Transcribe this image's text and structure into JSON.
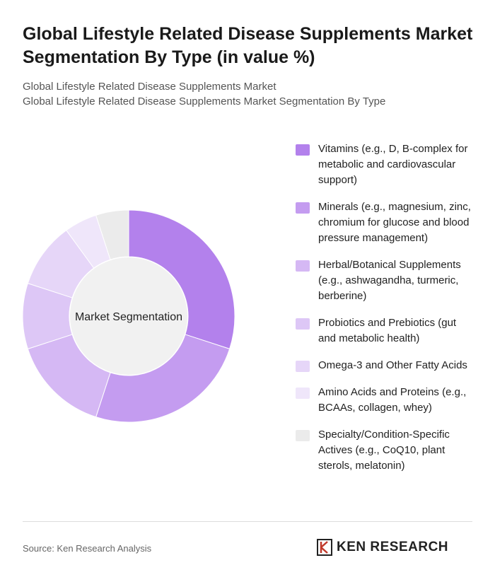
{
  "title": "Global Lifestyle Related Disease Supplements Market Segmentation By Type (in value %)",
  "subtitle": [
    "Global Lifestyle Related Disease Supplements Market",
    "Global Lifestyle Related Disease Supplements Market Segmentation By Type"
  ],
  "chart_data": {
    "type": "donut",
    "center_label": "Market Segmentation",
    "categories": [
      "Vitamins (e.g., D, B-complex for metabolic and cardiovascular support)",
      "Minerals (e.g., magnesium, zinc, chromium for glucose and blood pressure management)",
      "Herbal/Botanical Supplements (e.g., ashwagandha, turmeric, berberine)",
      "Probiotics and Prebiotics (gut and metabolic health)",
      "Omega-3 and Other Fatty Acids",
      "Amino Acids and Proteins (e.g., BCAAs, collagen, whey)",
      "Specialty/Condition-Specific Actives (e.g., CoQ10, plant sterols, melatonin)"
    ],
    "values": [
      30,
      25,
      15,
      10,
      10,
      5,
      5
    ],
    "colors": [
      "#b381ec",
      "#c49cf0",
      "#d5b8f4",
      "#ddc7f6",
      "#e6d6f8",
      "#efe6fa",
      "#ebebeb"
    ]
  },
  "source": "Source: Ken Research Analysis",
  "logo": "KEN RESEARCH"
}
